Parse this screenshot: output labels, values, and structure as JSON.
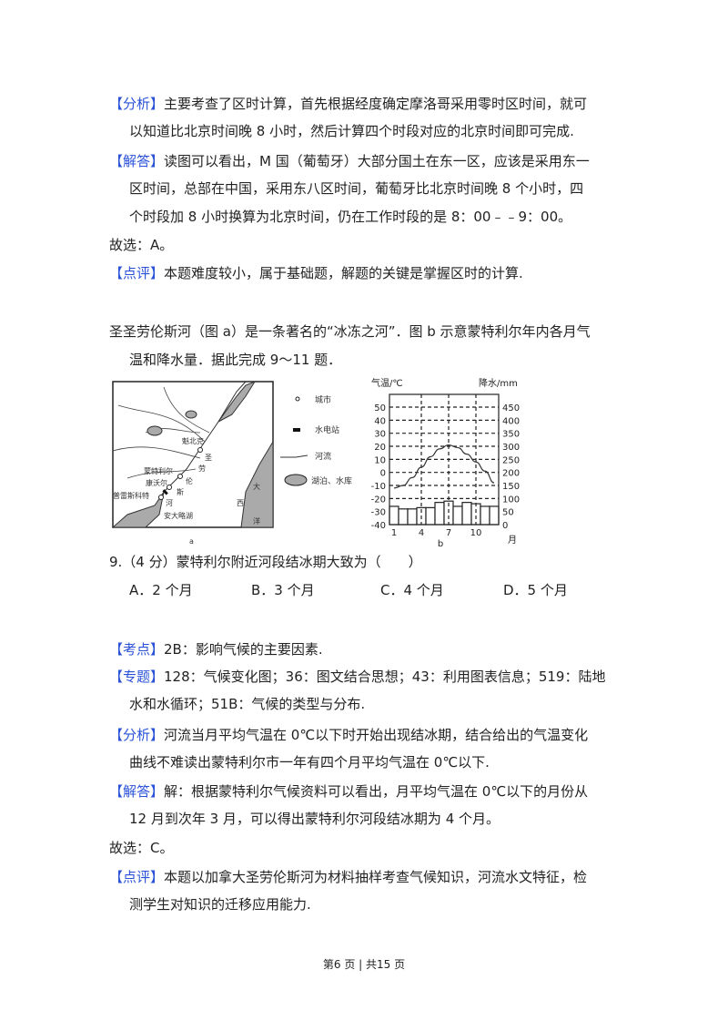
{
  "prev": {
    "analysis_tag": "【分析】",
    "analysis": [
      "主要考查了区时计算，首先根据经度确定摩洛哥采用零时区时间，就可",
      "以知道比北京时间晚 8 小时，然后计算四个时段对应的北京时间即可完成."
    ],
    "answer_tag": "【解答】",
    "answer": [
      "读图可以看出，M 国（葡萄牙）大部分国土在东一区，应该是采用东一",
      "区时间，总部在中国，采用东八区时间，葡萄牙比北京时间晚 8 个小时，四",
      "个时段加 8 小时换算为北京时间，仍在工作时段的是 8：00﹣﹣9：00。"
    ],
    "choice": "故选：A。",
    "comment_tag": "【点评】",
    "comment": "本题难度较小，属于基础题，解题的关键是掌握区时的计算."
  },
  "intro": [
    "圣圣劳伦斯河（图 a）是一条著名的“冰冻之河”．图 b 示意蒙特利尔年内各月气",
    "温和降水量．据此完成 9～11 题．"
  ],
  "map": {
    "caption": "a",
    "places": [
      "魁北克",
      "蒙特利尔",
      "康沃尔",
      "普雷斯科特"
    ],
    "river_label": [
      "圣",
      "劳",
      "伦",
      "斯",
      "河"
    ],
    "lake_label": "安大略湖",
    "ocean_label": [
      "大",
      "西",
      "洋"
    ],
    "legend": [
      "城市",
      "水电站",
      "河流",
      "湖泊、水库"
    ]
  },
  "chart_data": {
    "type": "bar+line",
    "caption": "b",
    "y_left_label": "气温/℃",
    "y_right_label": "降水/mm",
    "x_unit": "月",
    "x_ticks": [
      "1",
      "4",
      "7",
      "10"
    ],
    "y_left_ticks": [
      "50",
      "40",
      "30",
      "20",
      "10",
      "0",
      "-10",
      "-20",
      "-30",
      "-40"
    ],
    "y_right_ticks": [
      "450",
      "400",
      "350",
      "300",
      "250",
      "200",
      "150",
      "100",
      "50",
      "0"
    ],
    "months": [
      1,
      2,
      3,
      4,
      5,
      6,
      7,
      8,
      9,
      10,
      11,
      12
    ],
    "temperature": [
      -12,
      -10,
      -4,
      4,
      12,
      18,
      21,
      19,
      14,
      8,
      1,
      -8
    ],
    "precipitation": [
      70,
      60,
      60,
      65,
      65,
      85,
      90,
      70,
      85,
      80,
      70,
      70
    ],
    "ylim_left": [
      -40,
      50
    ],
    "ylim_right": [
      0,
      450
    ],
    "grid": true
  },
  "q9": {
    "stem": "9.（4 分）蒙特利尔附近河段结冰期大致为（　　）",
    "options": [
      "A．2 个月",
      "B．3 个月",
      "C．4 个月",
      "D．5 个月"
    ]
  },
  "sol9": {
    "kd_tag": "【考点】",
    "kd": "2B：影响气候的主要因素.",
    "zt_tag": "【专题】",
    "zt": [
      "128：气候变化图；36：图文结合思想；43：利用图表信息；519：陆地",
      "水和水循环；51B：气候的类型与分布."
    ],
    "fx_tag": "【分析】",
    "fx": [
      "河流当月平均气温在 0℃以下时开始出现结冰期，结合给出的气温变化",
      "曲线不难读出蒙特利尔市一年有四个月平均气温在 0℃以下."
    ],
    "jd_tag": "【解答】",
    "jd": [
      "解：根据蒙特利尔气候资料可以看出，月平均气温在 0℃以下的月份从",
      "12 月到次年 3 月，可以得出蒙特利尔河段结冰期为 4 个月。"
    ],
    "choice": "故选：C。",
    "dp_tag": "【点评】",
    "dp": [
      "本题以加拿大圣劳伦斯河为材料抽样考查气候知识，河流水文特征，检",
      "测学生对知识的迁移应用能力."
    ]
  },
  "footer": "第6 页 | 共15 页"
}
